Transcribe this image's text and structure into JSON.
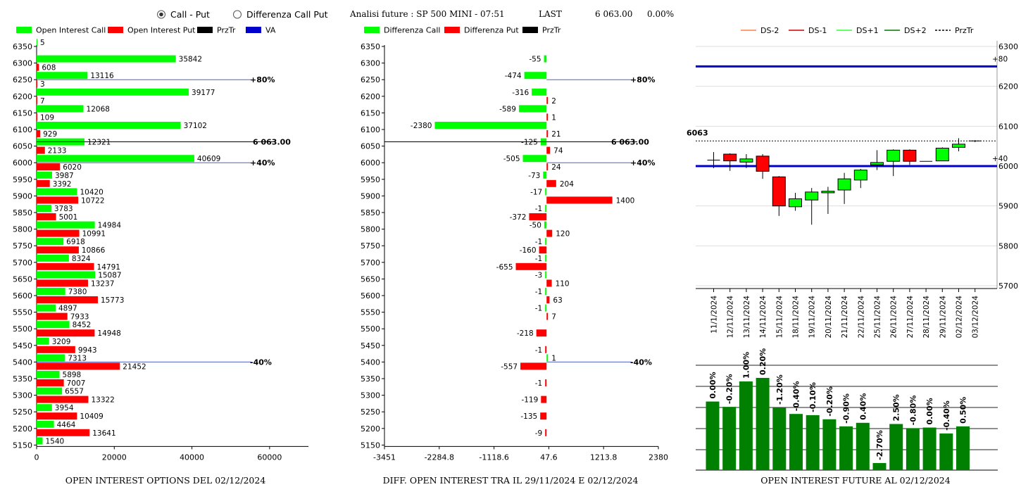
{
  "header": {
    "radio_options": [
      {
        "label": "Call - Put",
        "selected": true
      },
      {
        "label": "Differenza Call Put",
        "selected": false
      }
    ],
    "title": "Analisi future : SP 500 MINI - 07:51",
    "last_label": "LAST",
    "last_value": "6 063.00",
    "change": "0.00%"
  },
  "colors": {
    "call": "#00ff00",
    "put": "#ff0000",
    "przTr": "#000000",
    "va": "#0000cc",
    "dark_green": "#008000"
  },
  "chart_data": [
    {
      "type": "bar",
      "orientation": "horizontal",
      "caption": "OPEN INTEREST OPTIONS DEL 02/12/2024",
      "legend": [
        "Open Interest Call",
        "Open Interest Put",
        "PrzTr",
        "VA"
      ],
      "strikes": [
        6350,
        6300,
        6250,
        6200,
        6150,
        6100,
        6050,
        6000,
        5950,
        5900,
        5850,
        5800,
        5750,
        5700,
        5650,
        5600,
        5550,
        5500,
        5450,
        5400,
        5350,
        5300,
        5250,
        5200,
        5150
      ],
      "series": [
        {
          "name": "Open Interest Call",
          "values": [
            5,
            35842,
            13116,
            39177,
            12068,
            37102,
            12321,
            40609,
            3987,
            10420,
            3783,
            14984,
            6918,
            8324,
            15087,
            7380,
            4897,
            8452,
            3209,
            7313,
            5898,
            6557,
            3954,
            4464,
            1540
          ]
        },
        {
          "name": "Open Interest Put",
          "values": [
            null,
            608,
            3,
            7,
            109,
            929,
            2133,
            6020,
            3392,
            10722,
            5001,
            10991,
            10866,
            14791,
            13237,
            15773,
            7933,
            14948,
            9943,
            21452,
            7007,
            13322,
            10409,
            13641,
            null
          ]
        }
      ],
      "xlim": [
        0,
        70000
      ],
      "xticks": [
        "0",
        "20000",
        "40000",
        "60000"
      ],
      "lines": [
        {
          "level": 6250,
          "label": "+80%"
        },
        {
          "level": 6063,
          "label": "6 063.00"
        },
        {
          "level": 6000,
          "label": "+40%"
        },
        {
          "level": 5400,
          "label": "-40%"
        }
      ]
    },
    {
      "type": "bar",
      "orientation": "horizontal",
      "caption": "DIFF. OPEN INTEREST TRA IL 29/11/2024 E 02/12/2024",
      "legend": [
        "Differenza Call",
        "Differenza Put",
        "PrzTr"
      ],
      "strikes": [
        6350,
        6300,
        6250,
        6200,
        6150,
        6100,
        6050,
        6000,
        5950,
        5900,
        5850,
        5800,
        5750,
        5700,
        5650,
        5600,
        5550,
        5500,
        5450,
        5400,
        5350,
        5300,
        5250,
        5200,
        5150
      ],
      "series": [
        {
          "name": "Differenza Call",
          "values": [
            null,
            -55,
            -474,
            -316,
            -589,
            -2380,
            -125,
            -505,
            -73,
            -17,
            -1,
            -50,
            -1,
            -1,
            -3,
            -1,
            -1,
            null,
            null,
            1,
            null,
            null,
            null,
            null,
            null
          ]
        },
        {
          "name": "Differenza Put",
          "values": [
            null,
            null,
            null,
            2,
            1,
            21,
            74,
            24,
            204,
            1400,
            -372,
            120,
            -160,
            -655,
            110,
            63,
            7,
            -218,
            -1,
            -557,
            -1,
            -119,
            -135,
            -9,
            null
          ]
        }
      ],
      "xlim": [
        -3451,
        2380
      ],
      "xticks": [
        "-3451",
        "-2284.8",
        "-1118.6",
        "47.6",
        "1213.8",
        "2380"
      ],
      "lines": [
        {
          "level": 6250,
          "label": "+80%"
        },
        {
          "level": 6063,
          "label": "6 063.00"
        },
        {
          "level": 6000,
          "label": "+40%"
        },
        {
          "level": 5400,
          "label": "-40%"
        }
      ]
    },
    {
      "type": "candlestick",
      "legend": [
        "DS-2",
        "DS-1",
        "DS+1",
        "DS+2",
        "PrzTr"
      ],
      "legend_colors": [
        "#ff8040",
        "#cc0000",
        "#33ff33",
        "#007700",
        "#000000"
      ],
      "dates": [
        "11/1/2024",
        "12/11/2024",
        "13/11/2024",
        "14/11/2024",
        "15/11/2024",
        "18/11/2024",
        "19/11/2024",
        "20/11/2024",
        "21/11/2024",
        "22/11/2024",
        "25/11/2024",
        "26/11/2024",
        "27/11/2024",
        "28/11/2024",
        "29/11/2024",
        "02/12/2024",
        "03/12/2024"
      ],
      "candles": [
        {
          "o": 6015,
          "c": 6015,
          "h": 6035,
          "l": 5995
        },
        {
          "o": 6030,
          "c": 6013,
          "h": 6032,
          "l": 5988
        },
        {
          "o": 6010,
          "c": 6018,
          "h": 6030,
          "l": 5995
        },
        {
          "o": 6025,
          "c": 5987,
          "h": 6030,
          "l": 5968
        },
        {
          "o": 5973,
          "c": 5900,
          "h": 5975,
          "l": 5875
        },
        {
          "o": 5898,
          "c": 5918,
          "h": 5933,
          "l": 5888
        },
        {
          "o": 5915,
          "c": 5935,
          "h": 5945,
          "l": 5853
        },
        {
          "o": 5933,
          "c": 5937,
          "h": 5948,
          "l": 5880
        },
        {
          "o": 5940,
          "c": 5968,
          "h": 5983,
          "l": 5905
        },
        {
          "o": 5965,
          "c": 5990,
          "h": 5993,
          "l": 5945
        },
        {
          "o": 6003,
          "c": 6009,
          "h": 6040,
          "l": 5990
        },
        {
          "o": 6012,
          "c": 6040,
          "h": 6042,
          "l": 5975
        },
        {
          "o": 6040,
          "c": 6012,
          "h": 6042,
          "l": 6003
        },
        {
          "o": 6012,
          "c": 6012,
          "h": 6012,
          "l": 6012
        },
        {
          "o": 6013,
          "c": 6045,
          "h": 6047,
          "l": 6013
        },
        {
          "o": 6047,
          "c": 6055,
          "h": 6070,
          "l": 6037
        },
        {
          "o": 6063,
          "c": 6063,
          "h": 6065,
          "l": 6060
        }
      ],
      "ylim": [
        5700,
        6300
      ],
      "yticks": [
        5700,
        5800,
        5900,
        6000,
        6100,
        6200,
        6300
      ],
      "h_lines": [
        {
          "level": 6250,
          "label": "+80"
        },
        {
          "level": 6000,
          "label": "+40"
        }
      ],
      "last_price": 6063,
      "last_price_label": "6063"
    },
    {
      "type": "bar",
      "caption": "OPEN INTEREST FUTURE AL 02/12/2024",
      "labels": [
        "0.00%",
        "-0.20%",
        "1.00%",
        "0.20%",
        "-1.20%",
        "-0.40%",
        "-0.10%",
        "-0.20%",
        "-0.90%",
        "0.40%",
        "-2.70%",
        "2.50%",
        "-0.80%",
        "0.00%",
        "-0.40%",
        "0.50%"
      ],
      "values": [
        0.58,
        0.535,
        0.75,
        0.78,
        0.53,
        0.475,
        0.465,
        0.43,
        0.37,
        0.4,
        0.06,
        0.39,
        0.355,
        0.36,
        0.31,
        0.37
      ]
    }
  ]
}
